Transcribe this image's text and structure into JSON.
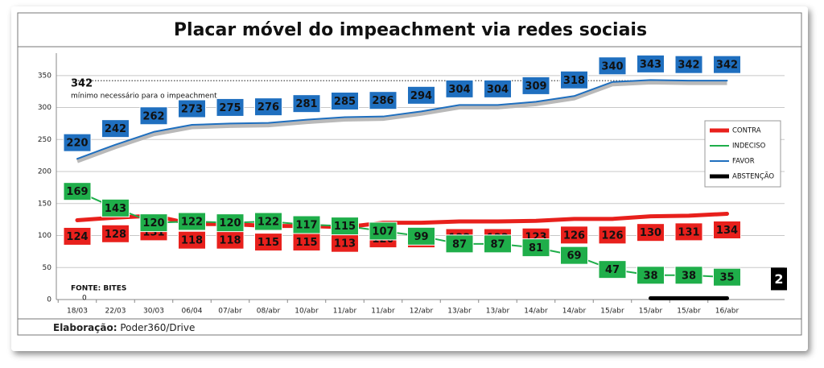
{
  "chart_data": {
    "type": "line",
    "title": "Placar móvel do impeachment via redes sociais",
    "categories": [
      "18/03",
      "22/03",
      "30/03",
      "06/04",
      "07/abr",
      "08/abr",
      "10/abr",
      "11/abr",
      "11/abr",
      "12/abr",
      "13/abr",
      "13/abr",
      "14/abr",
      "14/abr",
      "15/abr",
      "15/abr",
      "15/abr",
      "16/abr"
    ],
    "series": [
      {
        "name": "CONTRA",
        "color": "#e8201c",
        "values": [
          124,
          128,
          131,
          118,
          118,
          115,
          115,
          113,
          120,
          120,
          122,
          122,
          123,
          126,
          126,
          130,
          131,
          134
        ]
      },
      {
        "name": "INDECISO",
        "color": "#1fae4a",
        "values": [
          169,
          143,
          120,
          122,
          120,
          122,
          117,
          115,
          107,
          99,
          87,
          87,
          81,
          69,
          47,
          38,
          38,
          35
        ]
      },
      {
        "name": "FAVOR",
        "color": "#1f6fbf",
        "values": [
          220,
          242,
          262,
          273,
          275,
          276,
          281,
          285,
          286,
          294,
          304,
          304,
          309,
          318,
          340,
          343,
          342,
          342
        ]
      },
      {
        "name": "ABSTENÇÃO",
        "color": "#000000",
        "values": [
          0,
          null,
          null,
          null,
          null,
          null,
          null,
          null,
          null,
          null,
          null,
          null,
          null,
          null,
          null,
          2,
          2,
          2
        ]
      }
    ],
    "ylim": [
      0,
      385
    ],
    "yticks": [
      0,
      50,
      100,
      150,
      200,
      250,
      300,
      350
    ],
    "grid": true,
    "legend": "right",
    "threshold": {
      "value": 342,
      "text": "mínimo necessário para o impeachment"
    },
    "source": "FONTE: BITES",
    "credit_label": "Elaboração:",
    "credit": "Poder360/Drive"
  }
}
